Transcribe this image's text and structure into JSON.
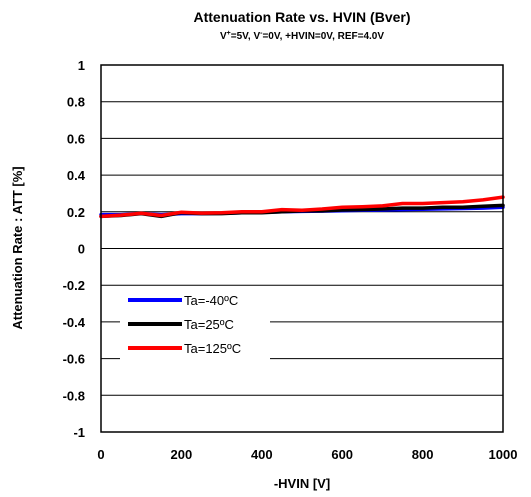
{
  "chart_data": {
    "type": "line",
    "title": "Attenuation Rate vs. HVIN (Bver)",
    "subtitle": {
      "p1": "V",
      "p1sup": "+",
      "p2": "=5V, V",
      "p2sup": "-",
      "p3": "=0V, +HVIN=0V, REF=4.0V"
    },
    "xlabel": "-HVIN [V]",
    "ylabel": "Attenuation Rate : ATT [%]",
    "xlim": [
      0,
      1000
    ],
    "ylim": [
      -1,
      1
    ],
    "xticks": [
      0,
      200,
      400,
      600,
      800,
      1000
    ],
    "yticks": [
      1,
      0.8,
      0.6,
      0.4,
      0.2,
      0,
      -0.2,
      -0.4,
      -0.6,
      -0.8,
      -1
    ],
    "xtick_labels": [
      "0",
      "200",
      "400",
      "600",
      "800",
      "1000"
    ],
    "ytick_labels": [
      "1",
      "0.8",
      "0.6",
      "0.4",
      "0.2",
      "0",
      "-0.2",
      "-0.4",
      "-0.6",
      "-0.8",
      "-1"
    ],
    "grid": "horizontal",
    "legend_position": "bottom-left",
    "series": [
      {
        "name": "Ta=-40ºC",
        "color": "#0000ff",
        "x": [
          0,
          50,
          100,
          150,
          200,
          250,
          300,
          350,
          400,
          450,
          500,
          550,
          600,
          650,
          700,
          750,
          800,
          850,
          900,
          950,
          1000
        ],
        "y": [
          0.185,
          0.185,
          0.19,
          0.185,
          0.19,
          0.19,
          0.192,
          0.195,
          0.197,
          0.2,
          0.202,
          0.204,
          0.206,
          0.208,
          0.21,
          0.212,
          0.214,
          0.216,
          0.218,
          0.22,
          0.225
        ]
      },
      {
        "name": "Ta=25ºC",
        "color": "#000000",
        "x": [
          0,
          50,
          100,
          150,
          200,
          250,
          300,
          350,
          400,
          450,
          500,
          550,
          600,
          650,
          700,
          750,
          800,
          850,
          900,
          950,
          1000
        ],
        "y": [
          0.175,
          0.18,
          0.19,
          0.175,
          0.195,
          0.19,
          0.19,
          0.195,
          0.195,
          0.2,
          0.205,
          0.205,
          0.21,
          0.212,
          0.215,
          0.22,
          0.22,
          0.225,
          0.225,
          0.23,
          0.235
        ]
      },
      {
        "name": "Ta=125ºC",
        "color": "#ff0000",
        "x": [
          0,
          50,
          100,
          150,
          200,
          250,
          300,
          350,
          400,
          450,
          500,
          550,
          600,
          650,
          700,
          750,
          800,
          850,
          900,
          950,
          1000
        ],
        "y": [
          0.175,
          0.182,
          0.192,
          0.18,
          0.198,
          0.193,
          0.195,
          0.2,
          0.2,
          0.212,
          0.208,
          0.215,
          0.225,
          0.228,
          0.232,
          0.245,
          0.245,
          0.25,
          0.255,
          0.265,
          0.28
        ]
      }
    ]
  }
}
